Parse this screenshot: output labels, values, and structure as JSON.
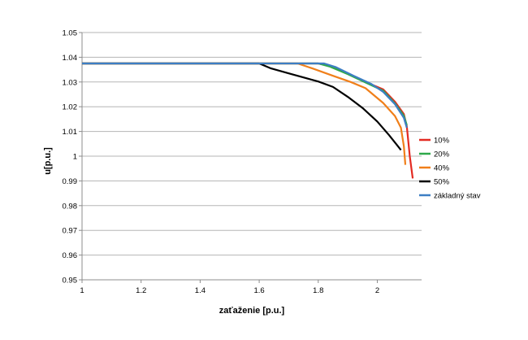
{
  "chart_data": {
    "type": "line",
    "title": "",
    "xlabel": "zaťaženie [p.u.]",
    "ylabel": "u[p.u.]",
    "xlim": [
      1,
      2.15
    ],
    "ylim": [
      0.95,
      1.05
    ],
    "x_ticks": [
      1,
      1.2,
      1.4,
      1.6,
      1.8,
      2
    ],
    "x_tick_labels": [
      "1",
      "1.2",
      "1.4",
      "1.6",
      "1.8",
      "2"
    ],
    "y_ticks": [
      0.95,
      0.96,
      0.97,
      0.98,
      0.99,
      1.0,
      1.01,
      1.02,
      1.03,
      1.04,
      1.05
    ],
    "y_tick_labels": [
      "0.95",
      "0.96",
      "0.97",
      "0.98",
      "0.99",
      "1",
      "1.01",
      "1.02",
      "1.03",
      "1.04",
      "1.05"
    ],
    "grid": "horizontal",
    "legend_position": "right",
    "series": [
      {
        "name": "10%",
        "color": "#e32b22",
        "points": [
          [
            1,
            1.0375
          ],
          [
            1.6,
            1.0375
          ],
          [
            1.8,
            1.0375
          ],
          [
            1.84,
            1.0365
          ],
          [
            1.9,
            1.0335
          ],
          [
            1.96,
            1.03
          ],
          [
            2.02,
            1.027
          ],
          [
            2.06,
            1.022
          ],
          [
            2.09,
            1.017
          ],
          [
            2.1,
            1.012
          ],
          [
            2.11,
            1.0
          ],
          [
            2.12,
            0.991
          ]
        ]
      },
      {
        "name": "20%",
        "color": "#2ea84a",
        "points": [
          [
            1,
            1.0375
          ],
          [
            1.6,
            1.0375
          ],
          [
            1.8,
            1.0375
          ],
          [
            1.84,
            1.0362
          ],
          [
            1.9,
            1.0332
          ],
          [
            1.96,
            1.0298
          ],
          [
            2.02,
            1.0265
          ],
          [
            2.06,
            1.0213
          ],
          [
            2.09,
            1.0163
          ],
          [
            2.1,
            1.0125
          ]
        ]
      },
      {
        "name": "40%",
        "color": "#f07f1a",
        "points": [
          [
            1,
            1.0375
          ],
          [
            1.6,
            1.0375
          ],
          [
            1.73,
            1.0375
          ],
          [
            1.78,
            1.0355
          ],
          [
            1.85,
            1.0325
          ],
          [
            1.91,
            1.03
          ],
          [
            1.96,
            1.0275
          ],
          [
            2.02,
            1.0215
          ],
          [
            2.06,
            1.0162
          ],
          [
            2.08,
            1.0115
          ],
          [
            2.09,
            1.004
          ],
          [
            2.095,
            0.9965
          ]
        ]
      },
      {
        "name": "50%",
        "color": "#000000",
        "points": [
          [
            1,
            1.0375
          ],
          [
            1.6,
            1.0375
          ],
          [
            1.64,
            1.0355
          ],
          [
            1.7,
            1.0335
          ],
          [
            1.76,
            1.0315
          ],
          [
            1.8,
            1.0302
          ],
          [
            1.85,
            1.028
          ],
          [
            1.9,
            1.024
          ],
          [
            1.95,
            1.0195
          ],
          [
            2.0,
            1.014
          ],
          [
            2.04,
            1.0085
          ],
          [
            2.07,
            1.004
          ],
          [
            2.08,
            1.0025
          ]
        ]
      },
      {
        "name": "základný stav",
        "color": "#3d7ec4",
        "points": [
          [
            1,
            1.0375
          ],
          [
            1.6,
            1.0375
          ],
          [
            1.82,
            1.0375
          ],
          [
            1.86,
            1.036
          ],
          [
            1.92,
            1.0325
          ],
          [
            1.98,
            1.0292
          ],
          [
            2.02,
            1.026
          ],
          [
            2.06,
            1.021
          ],
          [
            2.09,
            1.0155
          ],
          [
            2.1,
            1.0115
          ]
        ]
      }
    ]
  }
}
